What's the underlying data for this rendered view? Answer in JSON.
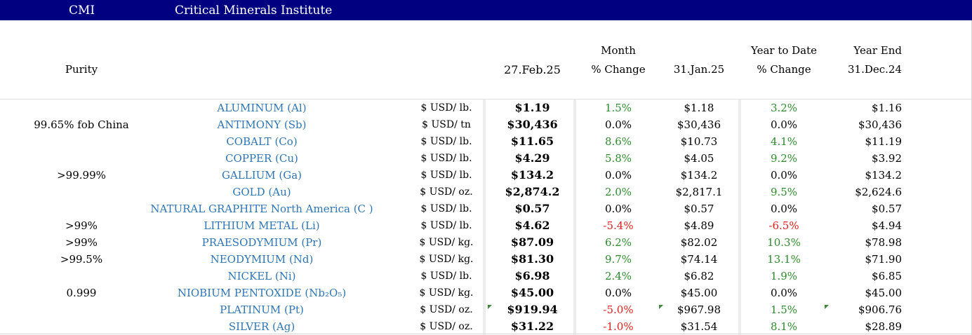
{
  "banner": {
    "abbr": "CMI",
    "org": "Critical Minerals Institute",
    "bg": "#000080"
  },
  "headers": {
    "purity": "Purity",
    "price_date": "27.Feb.25",
    "month_top": "Month",
    "month_bottom": "% Change",
    "prev_date": "31.Jan.25",
    "ytd_top": "Year to Date",
    "ytd_bottom": "% Change",
    "ye_top": "Year End",
    "ye_date": "31.Dec.24"
  },
  "colors": {
    "name": "#2e75b6",
    "positive": "#2e8b2e",
    "negative": "#e02020",
    "neutral": "#000000"
  },
  "rows": [
    {
      "purity": "",
      "name": "ALUMINUM (Al)",
      "unit": "$ USD/ lb.",
      "price": "$1.19",
      "month_change": "1.5%",
      "month_dir": "pos",
      "prev": "$1.18",
      "ytd": "3.2%",
      "ytd_dir": "pos",
      "year_end": "$1.16"
    },
    {
      "purity": "99.65% fob China",
      "name": "ANTIMONY (Sb)",
      "unit": "$ USD/ tn",
      "price": "$30,436",
      "month_change": "0.0%",
      "month_dir": "zero",
      "prev": "$30,436",
      "ytd": "0.0%",
      "ytd_dir": "zero",
      "year_end": "$30,436"
    },
    {
      "purity": "",
      "name": "COBALT (Co)",
      "unit": "$ USD/ lb.",
      "price": "$11.65",
      "month_change": "8.6%",
      "month_dir": "pos",
      "prev": "$10.73",
      "ytd": "4.1%",
      "ytd_dir": "pos",
      "year_end": "$11.19"
    },
    {
      "purity": "",
      "name": "COPPER (Cu)",
      "unit": "$ USD/ lb.",
      "price": "$4.29",
      "month_change": "5.8%",
      "month_dir": "pos",
      "prev": "$4.05",
      "ytd": "9.2%",
      "ytd_dir": "pos",
      "year_end": "$3.92"
    },
    {
      "purity": ">99.99%",
      "name": "GALLIUM (Ga)",
      "unit": "$ USD/ lb.",
      "price": "$134.2",
      "month_change": "0.0%",
      "month_dir": "zero",
      "prev": "$134.2",
      "ytd": "0.0%",
      "ytd_dir": "zero",
      "year_end": "$134.2"
    },
    {
      "purity": "",
      "name": "GOLD (Au)",
      "unit": "$ USD/ oz.",
      "price": "$2,874.2",
      "month_change": "2.0%",
      "month_dir": "pos",
      "prev": "$2,817.1",
      "ytd": "9.5%",
      "ytd_dir": "pos",
      "year_end": "$2,624.6"
    },
    {
      "purity": "",
      "name": "NATURAL GRAPHITE North America (C )",
      "unit": "$ USD/ lb.",
      "price": "$0.57",
      "month_change": "0.0%",
      "month_dir": "zero",
      "prev": "$0.57",
      "ytd": "0.0%",
      "ytd_dir": "zero",
      "year_end": "$0.57"
    },
    {
      "purity": ">99%",
      "name": "LITHIUM METAL (Li)",
      "unit": "$ USD/ lb.",
      "price": "$4.62",
      "month_change": "-5.4%",
      "month_dir": "neg",
      "prev": "$4.89",
      "ytd": "-6.5%",
      "ytd_dir": "neg",
      "year_end": "$4.94"
    },
    {
      "purity": ">99%",
      "name": "PRAESODYMIUM (Pr)",
      "unit": "$ USD/ kg.",
      "price": "$87.09",
      "month_change": "6.2%",
      "month_dir": "pos",
      "prev": "$82.02",
      "ytd": "10.3%",
      "ytd_dir": "pos",
      "year_end": "$78.98"
    },
    {
      "purity": ">99.5%",
      "name": "NEODYMIUM (Nd)",
      "unit": "$ USD/ kg.",
      "price": "$81.30",
      "month_change": "9.7%",
      "month_dir": "pos",
      "prev": "$74.14",
      "ytd": "13.1%",
      "ytd_dir": "pos",
      "year_end": "$71.90"
    },
    {
      "purity": "",
      "name": "NICKEL (Ni)",
      "unit": "$ USD/ lb.",
      "price": "$6.98",
      "month_change": "2.4%",
      "month_dir": "pos",
      "prev": "$6.82",
      "ytd": "1.9%",
      "ytd_dir": "pos",
      "year_end": "$6.85"
    },
    {
      "purity": "0.999",
      "name": "NIOBIUM PENTOXIDE (Nb₂O₅)",
      "unit": "$ USD/ kg.",
      "price": "$45.00",
      "month_change": "0.0%",
      "month_dir": "zero",
      "prev": "$45.00",
      "ytd": "0.0%",
      "ytd_dir": "zero",
      "year_end": "$45.00"
    },
    {
      "purity": "",
      "name": "PLATINUM (Pt)",
      "unit": "$ USD/ oz.",
      "price": "$919.94",
      "month_change": "-5.0%",
      "month_dir": "neg",
      "prev": "$967.98",
      "ytd": "1.5%",
      "ytd_dir": "pos",
      "year_end": "$906.76",
      "flagged": true
    },
    {
      "purity": "",
      "name": "SILVER (Ag)",
      "unit": "$ USD/ oz.",
      "price": "$31.22",
      "month_change": "-1.0%",
      "month_dir": "neg",
      "prev": "$31.54",
      "ytd": "8.1%",
      "ytd_dir": "pos",
      "year_end": "$28.89"
    }
  ]
}
